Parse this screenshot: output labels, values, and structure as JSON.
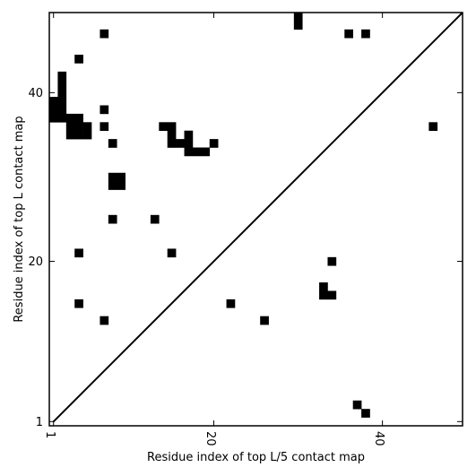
{
  "chart_data": {
    "type": "heatmap",
    "title": "",
    "xlabel": "Residue index of top L/5 contact map",
    "ylabel": "Residue index of top L contact map",
    "xlim": [
      0.5,
      49.5
    ],
    "ylim": [
      0.5,
      49.5
    ],
    "x_ticks": [
      1,
      20,
      40
    ],
    "y_ticks": [
      1,
      20,
      40
    ],
    "diagonal_line": true,
    "grid": false,
    "legend": "none",
    "colors": {
      "contact": "#000000",
      "background": "#ffffff",
      "axes": "#000000"
    },
    "contacts": [
      [
        1,
        39
      ],
      [
        1,
        38
      ],
      [
        1,
        37
      ],
      [
        2,
        42
      ],
      [
        2,
        41
      ],
      [
        2,
        40
      ],
      [
        2,
        39
      ],
      [
        2,
        38
      ],
      [
        2,
        37
      ],
      [
        3,
        37
      ],
      [
        3,
        36
      ],
      [
        3,
        35
      ],
      [
        4,
        37
      ],
      [
        4,
        36
      ],
      [
        4,
        35
      ],
      [
        4,
        44
      ],
      [
        4,
        21
      ],
      [
        4,
        15
      ],
      [
        5,
        36
      ],
      [
        5,
        35
      ],
      [
        7,
        47
      ],
      [
        7,
        38
      ],
      [
        7,
        36
      ],
      [
        7,
        13
      ],
      [
        8,
        34
      ],
      [
        8,
        30
      ],
      [
        8,
        29
      ],
      [
        8,
        25
      ],
      [
        9,
        30
      ],
      [
        9,
        29
      ],
      [
        13,
        25
      ],
      [
        14,
        36
      ],
      [
        15,
        36
      ],
      [
        15,
        35
      ],
      [
        15,
        34
      ],
      [
        15,
        21
      ],
      [
        16,
        34
      ],
      [
        17,
        35
      ],
      [
        17,
        34
      ],
      [
        17,
        33
      ],
      [
        18,
        33
      ],
      [
        19,
        33
      ],
      [
        20,
        34
      ],
      [
        22,
        15
      ],
      [
        26,
        13
      ],
      [
        30,
        49
      ],
      [
        30,
        48
      ],
      [
        33,
        17
      ],
      [
        33,
        16
      ],
      [
        34,
        20
      ],
      [
        34,
        16
      ],
      [
        36,
        47
      ],
      [
        37,
        3
      ],
      [
        38,
        47
      ],
      [
        38,
        2
      ],
      [
        46,
        36
      ]
    ]
  }
}
